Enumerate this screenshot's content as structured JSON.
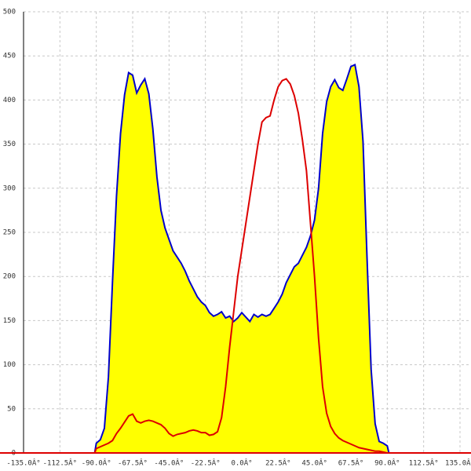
{
  "chart_data": {
    "type": "area-line",
    "x": [
      -135,
      -91,
      -90,
      -87.5,
      -85,
      -82.5,
      -80,
      -77.5,
      -75,
      -72.5,
      -70,
      -67.5,
      -65,
      -62.5,
      -60,
      -57.5,
      -55,
      -52.5,
      -50,
      -47.5,
      -45,
      -42.5,
      -40,
      -37.5,
      -35,
      -32.5,
      -30,
      -27.5,
      -25,
      -22.5,
      -20,
      -17.5,
      -15,
      -12.5,
      -10,
      -7.5,
      -5,
      -2.5,
      0,
      2.5,
      5,
      7.5,
      10,
      12.5,
      15,
      17.5,
      20,
      22.5,
      25,
      27.5,
      30,
      32.5,
      35,
      37.5,
      40,
      42.5,
      45,
      47.5,
      50,
      52.5,
      55,
      57.5,
      60,
      62.5,
      65,
      67.5,
      70,
      72.5,
      75,
      77.5,
      80,
      82.5,
      85,
      87.5,
      90,
      91,
      135
    ],
    "series": [
      {
        "color": "#0000cc",
        "fill": "#ffff00",
        "values": [
          0,
          0,
          11,
          15,
          28,
          86,
          193,
          291,
          362,
          406,
          431,
          428,
          408,
          417,
          424,
          407,
          367,
          313,
          275,
          255,
          242,
          229,
          222,
          215,
          206,
          195,
          186,
          177,
          171,
          167,
          159,
          155,
          157,
          160,
          153,
          155,
          149,
          153,
          159,
          154,
          149,
          157,
          154,
          157,
          155,
          157,
          164,
          171,
          180,
          193,
          202,
          211,
          215,
          224,
          233,
          246,
          264,
          300,
          362,
          398,
          415,
          423,
          414,
          411,
          424,
          438,
          440,
          415,
          353,
          220,
          95,
          33,
          13,
          11,
          8,
          0,
          0
        ]
      },
      {
        "color": "#dd0000",
        "values": [
          0,
          0,
          5,
          7,
          9,
          11,
          14,
          22,
          28,
          35,
          42,
          44,
          36,
          34,
          36,
          37,
          36,
          34,
          32,
          28,
          22,
          19,
          21,
          22,
          23,
          25,
          26,
          25,
          23,
          23,
          20,
          21,
          24,
          40,
          75,
          120,
          160,
          200,
          230,
          260,
          290,
          320,
          350,
          375,
          380,
          382,
          400,
          415,
          422,
          424,
          418,
          405,
          385,
          355,
          320,
          260,
          200,
          130,
          75,
          45,
          30,
          22,
          17,
          14,
          12,
          10,
          8,
          6,
          5,
          4,
          3,
          2,
          2,
          1,
          0,
          0,
          0
        ]
      }
    ],
    "xlim": [
      -135,
      135
    ],
    "xticks": [
      {
        "value": -135,
        "label": "-135.0Â°"
      },
      {
        "value": -112.5,
        "label": "-112.5Â°"
      },
      {
        "value": -90,
        "label": "-90.0Â°"
      },
      {
        "value": -67.5,
        "label": "-67.5Â°"
      },
      {
        "value": -45,
        "label": "-45.0Â°"
      },
      {
        "value": -22.5,
        "label": "-22.5Â°"
      },
      {
        "value": 0,
        "label": "0.0Â°"
      },
      {
        "value": 22.5,
        "label": "22.5Â°"
      },
      {
        "value": 45,
        "label": "45.0Â°"
      },
      {
        "value": 67.5,
        "label": "67.5Â°"
      },
      {
        "value": 90,
        "label": "90.0Â°"
      },
      {
        "value": 112.5,
        "label": "112.5Â°"
      },
      {
        "value": 135,
        "label": "135.0Â°"
      }
    ],
    "ylim": [
      0,
      500
    ],
    "yticks": [
      0,
      50,
      100,
      150,
      200,
      250,
      300,
      350,
      400,
      450,
      500
    ],
    "grid": true
  }
}
